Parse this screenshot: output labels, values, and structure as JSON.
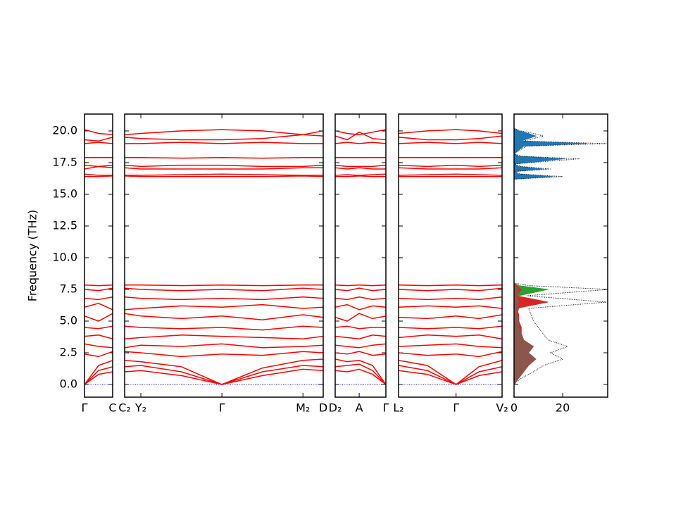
{
  "chart_data": [
    {
      "type": "bands",
      "y_label": "Frequency (THz)",
      "color": "#ff0000",
      "hline": 0,
      "hline_color": "#0000ff",
      "ylim": [
        -1,
        21.33
      ],
      "yticks": [
        {
          "value": 0,
          "label": "0.0"
        },
        {
          "value": 2.5,
          "label": "2.5"
        },
        {
          "value": 5,
          "label": "5.0"
        },
        {
          "value": 7.5,
          "label": "7.5"
        },
        {
          "value": 10,
          "label": "10.0"
        },
        {
          "value": 12.5,
          "label": "12.5"
        },
        {
          "value": 15,
          "label": "15.0"
        },
        {
          "value": 17.5,
          "label": "17.5"
        },
        {
          "value": 20,
          "label": "20.0"
        }
      ],
      "xlim": [
        0,
        1
      ],
      "xticks": [
        {
          "value": 0,
          "label": "Γ"
        },
        {
          "value": 1,
          "label": "C"
        }
      ],
      "x": [
        0,
        0.5,
        1
      ],
      "bands": [
        [
          0,
          0.8,
          1.0
        ],
        [
          0,
          1.1,
          1.4
        ],
        [
          0,
          1.5,
          1.9
        ],
        [
          2.4,
          2.2,
          2.6
        ],
        [
          3.2,
          3.0,
          2.9
        ],
        [
          3.8,
          3.9,
          3.6
        ],
        [
          4.5,
          4.4,
          4.6
        ],
        [
          5.4,
          5.0,
          5.6
        ],
        [
          6.1,
          6.4,
          5.9
        ],
        [
          6.8,
          6.7,
          6.9
        ],
        [
          7.5,
          7.4,
          7.6
        ],
        [
          7.85,
          7.8,
          7.85
        ],
        [
          16.4,
          16.4,
          16.45
        ],
        [
          16.6,
          16.5,
          16.5
        ],
        [
          17.0,
          17.2,
          17.1
        ],
        [
          17.3,
          17.2,
          17.3
        ],
        [
          17.9,
          17.9,
          17.9
        ],
        [
          19.0,
          19.1,
          19.0
        ],
        [
          19.3,
          19.2,
          19.5
        ],
        [
          20.1,
          19.8,
          19.7
        ]
      ]
    },
    {
      "type": "bands",
      "color": "#ff0000",
      "hline": 0,
      "hline_color": "#0000ff",
      "ylim": [
        -1,
        21.33
      ],
      "yticks": [
        0,
        2.5,
        5,
        7.5,
        10,
        12.5,
        15,
        17.5,
        20
      ],
      "xlim": [
        0,
        2.45
      ],
      "xticks": [
        {
          "value": 0,
          "label": "C₂"
        },
        {
          "value": 0.2,
          "label": "Y₂"
        },
        {
          "value": 1.2,
          "label": "Γ"
        },
        {
          "value": 2.2,
          "label": "M₂"
        },
        {
          "value": 2.45,
          "label": "D"
        }
      ],
      "x": [
        0,
        0.2,
        0.7,
        1.2,
        1.7,
        2.2,
        2.45
      ],
      "bands": [
        [
          1.0,
          1.1,
          0.7,
          0,
          0.7,
          1.2,
          1.1
        ],
        [
          1.4,
          1.5,
          1.0,
          0,
          1.0,
          1.5,
          1.4
        ],
        [
          1.9,
          1.8,
          1.4,
          0,
          1.3,
          1.9,
          2.0
        ],
        [
          2.6,
          2.5,
          2.2,
          2.4,
          2.3,
          2.6,
          2.5
        ],
        [
          2.9,
          3.1,
          3.0,
          3.2,
          2.9,
          3.0,
          3.1
        ],
        [
          3.6,
          3.7,
          3.9,
          3.8,
          3.7,
          3.6,
          3.8
        ],
        [
          4.6,
          4.5,
          4.4,
          4.5,
          4.3,
          4.6,
          4.5
        ],
        [
          5.6,
          5.4,
          5.2,
          5.4,
          5.1,
          5.5,
          5.3
        ],
        [
          5.9,
          6.0,
          6.2,
          6.1,
          6.3,
          6.0,
          6.1
        ],
        [
          6.9,
          6.8,
          6.7,
          6.8,
          6.7,
          6.9,
          6.8
        ],
        [
          7.6,
          7.5,
          7.4,
          7.5,
          7.4,
          7.6,
          7.5
        ],
        [
          7.85,
          7.85,
          7.8,
          7.85,
          7.8,
          7.85,
          7.85
        ],
        [
          16.45,
          16.4,
          16.4,
          16.4,
          16.4,
          16.45,
          16.4
        ],
        [
          16.5,
          16.5,
          16.55,
          16.6,
          16.55,
          16.5,
          16.5
        ],
        [
          17.1,
          17.0,
          17.0,
          17.0,
          17.0,
          17.1,
          17.1
        ],
        [
          17.3,
          17.2,
          17.3,
          17.3,
          17.2,
          17.2,
          17.3
        ],
        [
          17.9,
          17.9,
          17.85,
          17.9,
          17.85,
          17.9,
          17.9
        ],
        [
          19.0,
          19.0,
          19.1,
          19.0,
          19.1,
          19.0,
          19.0
        ],
        [
          19.5,
          19.4,
          19.3,
          19.3,
          19.4,
          19.7,
          19.6
        ],
        [
          19.7,
          19.8,
          20.0,
          20.1,
          20.0,
          19.7,
          20.0
        ]
      ]
    },
    {
      "type": "bands",
      "color": "#ff0000",
      "hline": 0,
      "hline_color": "#0000ff",
      "ylim": [
        -1,
        21.33
      ],
      "yticks": [
        0,
        2.5,
        5,
        7.5,
        10,
        12.5,
        15,
        17.5,
        20
      ],
      "xlim": [
        0,
        1.9
      ],
      "xticks": [
        {
          "value": 0,
          "label": "D₂"
        },
        {
          "value": 0.9,
          "label": "A"
        },
        {
          "value": 1.9,
          "label": "Γ"
        }
      ],
      "x": [
        0,
        0.45,
        0.9,
        1.4,
        1.9
      ],
      "bands": [
        [
          1.1,
          1.0,
          1.2,
          0.8,
          0
        ],
        [
          1.4,
          1.5,
          1.6,
          1.1,
          0
        ],
        [
          2.0,
          1.8,
          1.9,
          1.5,
          0
        ],
        [
          2.5,
          2.4,
          2.6,
          2.3,
          2.4
        ],
        [
          3.1,
          3.0,
          2.9,
          3.1,
          3.2
        ],
        [
          3.8,
          3.7,
          3.6,
          3.9,
          3.8
        ],
        [
          4.5,
          4.6,
          4.4,
          4.5,
          4.5
        ],
        [
          5.3,
          5.0,
          5.6,
          5.2,
          5.4
        ],
        [
          6.1,
          6.3,
          5.9,
          6.2,
          6.1
        ],
        [
          6.8,
          6.7,
          6.9,
          6.7,
          6.8
        ],
        [
          7.5,
          7.4,
          7.6,
          7.4,
          7.5
        ],
        [
          7.85,
          7.8,
          7.85,
          7.8,
          7.85
        ],
        [
          16.4,
          16.4,
          16.45,
          16.4,
          16.4
        ],
        [
          16.5,
          16.55,
          16.5,
          16.55,
          16.6
        ],
        [
          17.1,
          17.0,
          17.1,
          17.0,
          17.0
        ],
        [
          17.3,
          17.2,
          17.2,
          17.2,
          17.3
        ],
        [
          17.9,
          17.9,
          17.9,
          17.9,
          17.9
        ],
        [
          19.0,
          19.1,
          19.0,
          19.1,
          19.0
        ],
        [
          19.6,
          19.3,
          19.9,
          19.4,
          19.3
        ],
        [
          20.0,
          19.8,
          19.7,
          19.9,
          20.1
        ]
      ]
    },
    {
      "type": "bands",
      "color": "#ff0000",
      "hline": 0,
      "hline_color": "#0000ff",
      "ylim": [
        -1,
        21.33
      ],
      "yticks": [
        0,
        2.5,
        5,
        7.5,
        10,
        12.5,
        15,
        17.5,
        20
      ],
      "xlim": [
        0,
        1.8
      ],
      "xticks": [
        {
          "value": 0,
          "label": "L₂"
        },
        {
          "value": 1,
          "label": "Γ"
        },
        {
          "value": 1.8,
          "label": "V₂"
        }
      ],
      "x": [
        0,
        0.5,
        1,
        1.4,
        1.8
      ],
      "bands": [
        [
          1.1,
          0.8,
          0,
          0.7,
          1.0
        ],
        [
          1.5,
          1.1,
          0,
          1.0,
          1.4
        ],
        [
          1.9,
          1.5,
          0,
          1.4,
          1.9
        ],
        [
          2.5,
          2.3,
          2.4,
          2.2,
          2.6
        ],
        [
          3.0,
          3.1,
          3.2,
          3.0,
          2.9
        ],
        [
          3.7,
          3.9,
          3.8,
          3.9,
          3.6
        ],
        [
          4.5,
          4.4,
          4.5,
          4.4,
          4.6
        ],
        [
          5.3,
          5.2,
          5.4,
          5.2,
          5.5
        ],
        [
          6.1,
          6.2,
          6.1,
          6.2,
          6.0
        ],
        [
          6.8,
          6.7,
          6.8,
          6.7,
          6.9
        ],
        [
          7.5,
          7.4,
          7.5,
          7.4,
          7.6
        ],
        [
          7.85,
          7.8,
          7.85,
          7.8,
          7.85
        ],
        [
          16.4,
          16.4,
          16.4,
          16.4,
          16.4
        ],
        [
          16.5,
          16.55,
          16.6,
          16.55,
          16.5
        ],
        [
          17.1,
          17.0,
          17.0,
          17.0,
          17.1
        ],
        [
          17.3,
          17.2,
          17.3,
          17.2,
          17.3
        ],
        [
          17.9,
          17.9,
          17.9,
          17.9,
          17.9
        ],
        [
          19.0,
          19.1,
          19.0,
          19.1,
          19.0
        ],
        [
          19.5,
          19.3,
          19.3,
          19.4,
          19.6
        ],
        [
          19.8,
          20.0,
          20.1,
          20.0,
          19.8
        ]
      ]
    },
    {
      "type": "dos",
      "ylim": [
        -1,
        21.33
      ],
      "yticks": [
        0,
        2.5,
        5,
        7.5,
        10,
        12.5,
        15,
        17.5,
        20
      ],
      "xlim": [
        0,
        38.5
      ],
      "xticks": [
        0,
        20
      ],
      "y": [
        0,
        0.5,
        1,
        1.5,
        2,
        2.5,
        3,
        3.5,
        4,
        4.5,
        5,
        5.5,
        6,
        6.5,
        7,
        7.5,
        7.8,
        8,
        16.2,
        16.4,
        16.6,
        16.8,
        17,
        17.2,
        17.4,
        17.8,
        18,
        18.2,
        18.8,
        19,
        19.2,
        19.6,
        19.8,
        20,
        20.2,
        21
      ],
      "series": [
        {
          "color": "#1f77b4",
          "fill": true,
          "values": [
            0,
            0,
            0,
            0,
            0,
            0,
            0,
            0,
            0,
            0,
            0,
            0,
            0,
            0,
            0,
            0,
            0,
            0,
            0,
            16,
            2,
            0,
            12,
            2,
            0,
            21,
            2,
            0,
            4,
            30,
            3,
            9,
            6,
            2,
            0,
            0
          ]
        },
        {
          "color": "#2ca02c",
          "fill": true,
          "values": [
            0,
            1,
            2,
            3,
            4,
            3,
            5,
            3,
            2,
            2,
            1,
            1,
            2,
            3,
            2,
            14,
            2,
            0,
            0,
            0,
            0,
            0,
            0,
            0,
            0,
            0,
            0,
            0,
            0,
            0,
            0,
            0,
            0,
            0,
            0,
            0
          ]
        },
        {
          "color": "#d62728",
          "fill": true,
          "values": [
            0,
            1,
            3,
            4,
            5,
            4,
            6,
            4,
            3,
            3,
            2,
            2,
            1,
            14,
            1,
            3,
            1,
            0,
            0,
            0,
            0,
            0,
            0,
            0,
            0,
            0,
            0,
            0,
            0,
            0,
            0,
            0,
            0,
            0,
            0,
            0
          ]
        },
        {
          "color": "#8c564b",
          "fill": true,
          "values": [
            0,
            2,
            4,
            6,
            9,
            6,
            8,
            4,
            3,
            2,
            2,
            1,
            1,
            2,
            1,
            2,
            0,
            0,
            0,
            0,
            0,
            0,
            0,
            0,
            0,
            0,
            0,
            0,
            0,
            0,
            0,
            0,
            0,
            0,
            0,
            0
          ]
        },
        {
          "color": "#000000",
          "fill": false,
          "values": [
            0,
            3,
            8,
            12,
            20,
            15,
            22,
            14,
            12,
            10,
            8,
            7,
            6,
            38,
            5,
            39,
            6,
            0,
            0,
            20,
            3,
            0,
            15,
            3,
            0,
            27,
            3,
            0,
            5,
            38,
            4,
            12,
            8,
            3,
            0,
            0
          ]
        }
      ]
    }
  ]
}
